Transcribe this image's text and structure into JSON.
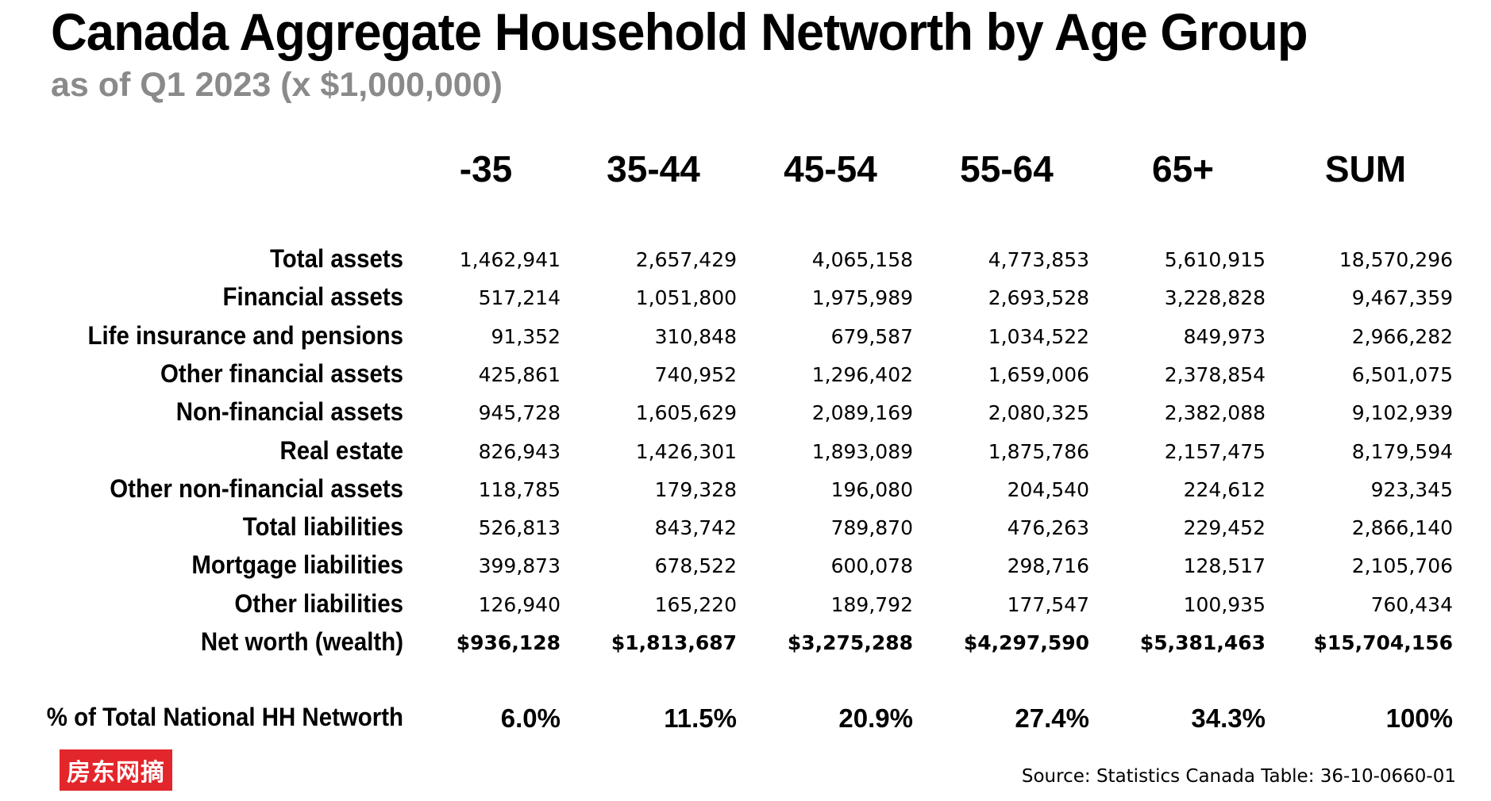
{
  "title": "Canada Aggregate Household Networth by Age Group",
  "subtitle": "as of Q1 2023 (x $1,000,000)",
  "chart_data": {
    "type": "table",
    "columns": [
      "-35",
      "35-44",
      "45-54",
      "55-64",
      "65+",
      "SUM"
    ],
    "rows": [
      {
        "label": "Total assets",
        "values": [
          "1,462,941",
          "2,657,429",
          "4,065,158",
          "4,773,853",
          "5,610,915",
          "18,570,296"
        ]
      },
      {
        "label": "Financial assets",
        "values": [
          "517,214",
          "1,051,800",
          "1,975,989",
          "2,693,528",
          "3,228,828",
          "9,467,359"
        ]
      },
      {
        "label": "Life insurance and pensions",
        "values": [
          "91,352",
          "310,848",
          "679,587",
          "1,034,522",
          "849,973",
          "2,966,282"
        ]
      },
      {
        "label": "Other financial assets",
        "values": [
          "425,861",
          "740,952",
          "1,296,402",
          "1,659,006",
          "2,378,854",
          "6,501,075"
        ]
      },
      {
        "label": "Non-financial assets",
        "values": [
          "945,728",
          "1,605,629",
          "2,089,169",
          "2,080,325",
          "2,382,088",
          "9,102,939"
        ]
      },
      {
        "label": "Real estate",
        "values": [
          "826,943",
          "1,426,301",
          "1,893,089",
          "1,875,786",
          "2,157,475",
          "8,179,594"
        ]
      },
      {
        "label": "Other non-financial assets",
        "values": [
          "118,785",
          "179,328",
          "196,080",
          "204,540",
          "224,612",
          "923,345"
        ]
      },
      {
        "label": "Total liabilities",
        "values": [
          "526,813",
          "843,742",
          "789,870",
          "476,263",
          "229,452",
          "2,866,140"
        ]
      },
      {
        "label": "Mortgage liabilities",
        "values": [
          "399,873",
          "678,522",
          "600,078",
          "298,716",
          "128,517",
          "2,105,706"
        ]
      },
      {
        "label": "Other liabilities",
        "values": [
          "126,940",
          "165,220",
          "189,792",
          "177,547",
          "100,935",
          "760,434"
        ]
      },
      {
        "label": "Net worth (wealth)",
        "values": [
          "$936,128",
          "$1,813,687",
          "$3,275,288",
          "$4,297,590",
          "$5,381,463",
          "$15,704,156"
        ]
      }
    ],
    "percent_row": {
      "label": "% of Total National HH Networth",
      "values": [
        "6.0%",
        "11.5%",
        "20.9%",
        "27.4%",
        "34.3%",
        "100%"
      ]
    }
  },
  "badge": "房东网摘",
  "source": "Source: Statistics Canada Table: 36-10-0660-01",
  "colors": {
    "badge_bg": "#e3262b",
    "subtitle": "#8a8a8a"
  }
}
